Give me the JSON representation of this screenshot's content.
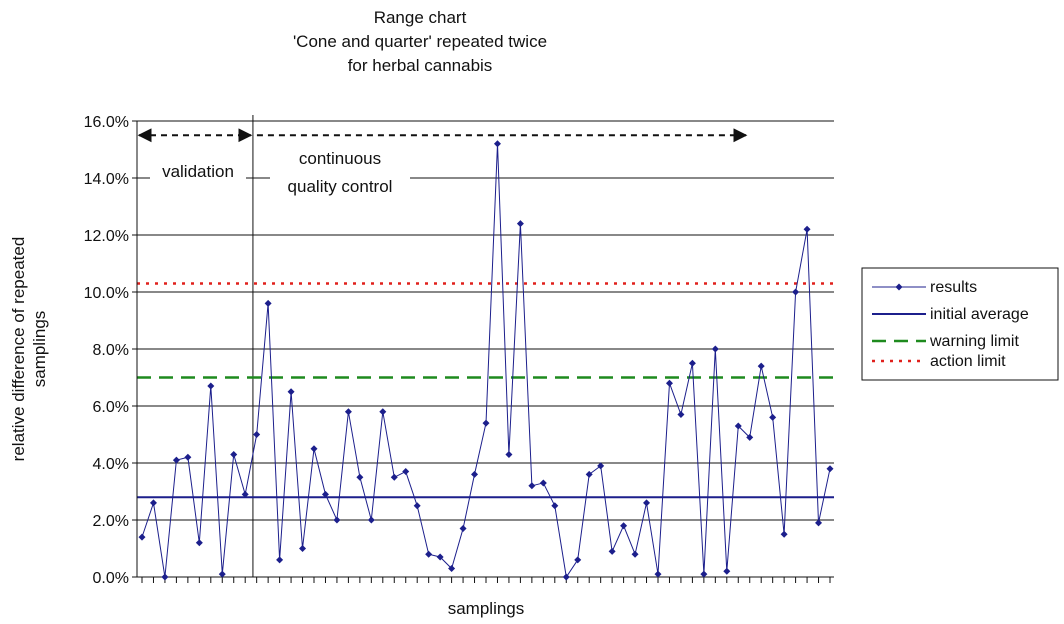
{
  "chart_data": {
    "type": "line",
    "title_lines": [
      "Range chart",
      "'Cone and quarter' repeated twice",
      "for herbal cannabis"
    ],
    "xlabel": "samplings",
    "ylabel_lines": [
      "relative difference of repeated",
      "samplings"
    ],
    "ylim": [
      0,
      0.16
    ],
    "y_ticks": [
      "0.0%",
      "2.0%",
      "4.0%",
      "6.0%",
      "8.0%",
      "10.0%",
      "12.0%",
      "14.0%",
      "16.0%"
    ],
    "grid": true,
    "n_samplings": 61,
    "series": [
      {
        "name": "results",
        "color": "#1c1f8c",
        "values": [
          0.014,
          0.026,
          0.0,
          0.041,
          0.042,
          0.012,
          0.067,
          0.001,
          0.043,
          0.029,
          0.05,
          0.096,
          0.006,
          0.065,
          0.01,
          0.045,
          0.029,
          0.02,
          0.058,
          0.035,
          0.02,
          0.058,
          0.035,
          0.037,
          0.025,
          0.008,
          0.007,
          0.003,
          0.017,
          0.036,
          0.054,
          0.152,
          0.043,
          0.124,
          0.032,
          0.033,
          0.025,
          0.0,
          0.006,
          0.036,
          0.039,
          0.009,
          0.018,
          0.008,
          0.026,
          0.001,
          0.068,
          0.057,
          0.075,
          0.001,
          0.08,
          0.002,
          0.053,
          0.049,
          0.074,
          0.056,
          0.015,
          0.1,
          0.122,
          0.019,
          0.038
        ]
      }
    ],
    "reference_lines": [
      {
        "name": "initial average",
        "value": 0.028,
        "color": "#1c1f8c",
        "style": "solid"
      },
      {
        "name": "warning limit",
        "value": 0.07,
        "color": "#1e8a1e",
        "style": "dashed"
      },
      {
        "name": "action limit",
        "value": 0.103,
        "color": "#e0201c",
        "style": "dotted"
      }
    ],
    "phases": [
      {
        "label": "validation",
        "start_index": 0,
        "end_index": 9
      },
      {
        "label_lines": [
          "continuous",
          "quality control"
        ],
        "start_index": 10,
        "end_index": 60
      }
    ],
    "legend": {
      "position": "right",
      "entries": [
        "results",
        "initial average",
        "warning limit",
        "action limit"
      ]
    }
  }
}
